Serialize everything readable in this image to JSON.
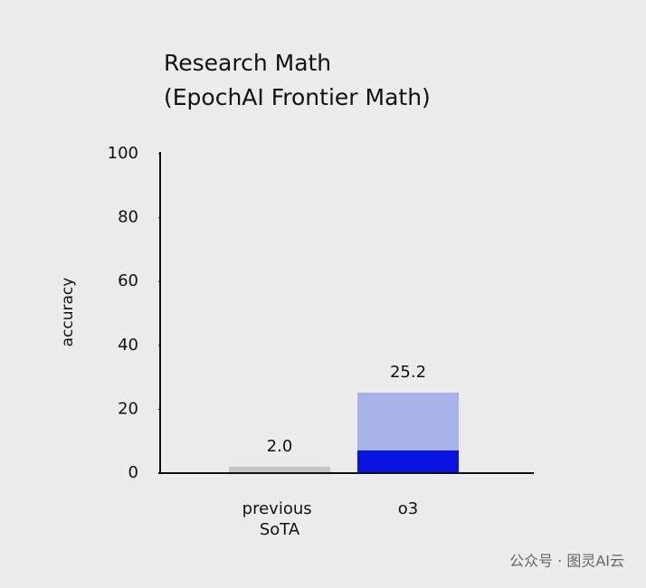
{
  "chart_data": {
    "type": "bar",
    "title": "Research Math",
    "subtitle": "(EpochAI Frontier Math)",
    "ylabel": "accuracy",
    "categories": [
      "previous SoTA",
      "o3"
    ],
    "series": [
      {
        "colors": [
          "#c6c6c6",
          "#a6b3e8"
        ],
        "values": [
          2.0,
          25.2
        ],
        "value_labels": [
          "2.0",
          "25.2"
        ]
      },
      {
        "colors": [
          null,
          "#0a14e0"
        ],
        "values": [
          null,
          7.1
        ]
      }
    ],
    "overlay": true,
    "ylim": [
      0,
      100
    ],
    "yticks": [
      0,
      20,
      40,
      60,
      80,
      100
    ],
    "watermark": "公众号 · 图灵AI云"
  }
}
